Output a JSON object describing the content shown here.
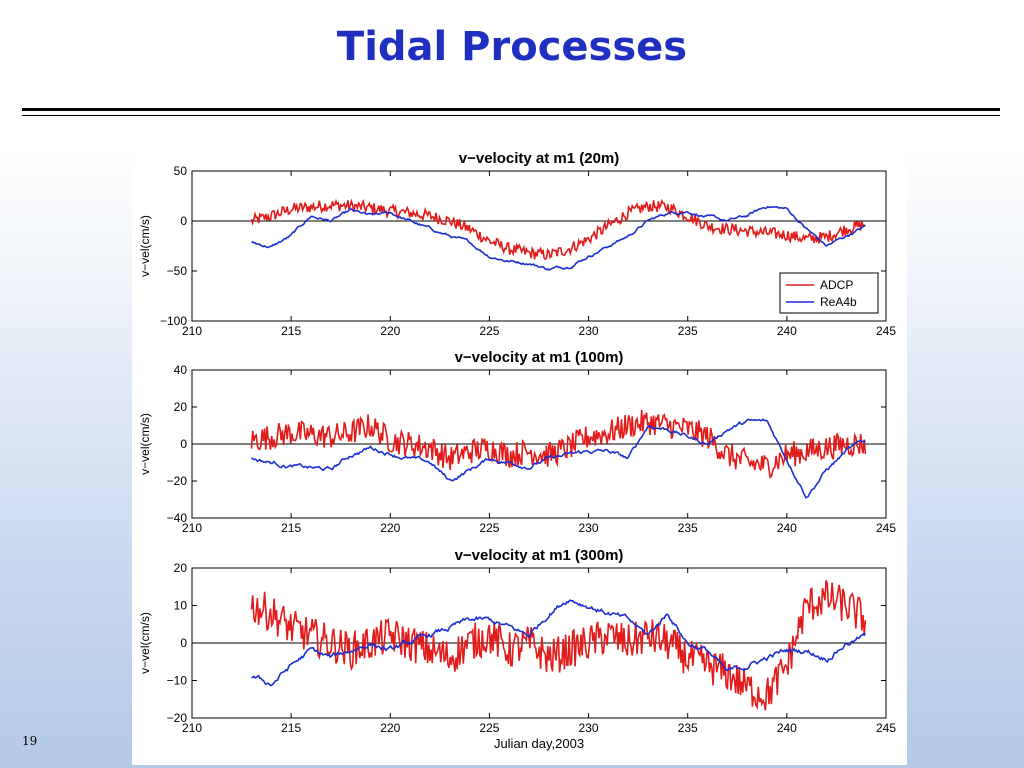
{
  "slide": {
    "title": "Tidal Processes",
    "page_number": "19"
  },
  "colors": {
    "title": "#1f2fbf",
    "adcp": "#e21b1b",
    "rea4b": "#1d2fd0"
  },
  "chart_data": [
    {
      "type": "line",
      "title": "v−velocity at m1 (20m)",
      "xlabel": "",
      "ylabel": "v−vel(cm/s)",
      "xlim": [
        210,
        245
      ],
      "ylim": [
        -100,
        50
      ],
      "xticks": [
        210,
        215,
        220,
        225,
        230,
        235,
        240,
        245
      ],
      "yticks": [
        -100,
        -50,
        0,
        50
      ],
      "ytick_labels": [
        "−100",
        "−50",
        "0",
        "50"
      ],
      "zero_line": true,
      "grid": false,
      "legend": {
        "placement": "lower-right",
        "entries": [
          "ADCP",
          "ReA4b"
        ]
      },
      "series": [
        {
          "name": "ADCP",
          "color": "#e21b1b",
          "noise": 6,
          "x": [
            213,
            214,
            215,
            216,
            217,
            218,
            219,
            220,
            221,
            222,
            223,
            224,
            225,
            226,
            227,
            228,
            229,
            230,
            231,
            232,
            233,
            234,
            235,
            236,
            237,
            238,
            239,
            240,
            241,
            242,
            243,
            244
          ],
          "y": [
            0,
            5,
            12,
            14,
            16,
            15,
            13,
            10,
            8,
            5,
            0,
            -8,
            -20,
            -28,
            -32,
            -34,
            -28,
            -18,
            -5,
            8,
            15,
            14,
            5,
            -5,
            -8,
            -10,
            -12,
            -14,
            -18,
            -16,
            -8,
            -3
          ]
        },
        {
          "name": "ReA4b",
          "color": "#1d2fd0",
          "noise": 2,
          "x": [
            213,
            214,
            215,
            216,
            217,
            218,
            219,
            220,
            221,
            222,
            223,
            224,
            225,
            226,
            227,
            228,
            229,
            230,
            231,
            232,
            233,
            234,
            235,
            236,
            237,
            238,
            239,
            240,
            241,
            242,
            243,
            244
          ],
          "y": [
            -22,
            -26,
            -15,
            5,
            0,
            10,
            5,
            8,
            0,
            -8,
            -15,
            -22,
            -35,
            -40,
            -42,
            -48,
            -45,
            -35,
            -25,
            -15,
            0,
            8,
            10,
            4,
            0,
            5,
            15,
            12,
            -8,
            -25,
            -15,
            -5
          ]
        }
      ]
    },
    {
      "type": "line",
      "title": "v−velocity at m1 (100m)",
      "xlabel": "",
      "ylabel": "v−vel(cm/s)",
      "xlim": [
        210,
        245
      ],
      "ylim": [
        -40,
        40
      ],
      "xticks": [
        210,
        215,
        220,
        225,
        230,
        235,
        240,
        245
      ],
      "yticks": [
        -40,
        -20,
        0,
        20,
        40
      ],
      "ytick_labels": [
        "−40",
        "−20",
        "0",
        "20",
        "40"
      ],
      "zero_line": true,
      "grid": false,
      "series": [
        {
          "name": "ADCP",
          "color": "#e21b1b",
          "noise": 7,
          "x": [
            213,
            214,
            215,
            216,
            217,
            218,
            219,
            220,
            221,
            222,
            223,
            224,
            225,
            226,
            227,
            228,
            229,
            230,
            231,
            232,
            233,
            234,
            235,
            236,
            237,
            238,
            239,
            240,
            241,
            242,
            243,
            244
          ],
          "y": [
            2,
            4,
            6,
            5,
            4,
            6,
            10,
            2,
            0,
            -2,
            -8,
            -4,
            -2,
            -6,
            -4,
            -6,
            -2,
            4,
            6,
            10,
            12,
            10,
            8,
            4,
            -6,
            -10,
            -12,
            -6,
            -4,
            -2,
            0,
            0
          ]
        },
        {
          "name": "ReA4b",
          "color": "#1d2fd0",
          "noise": 1.5,
          "x": [
            213,
            214,
            215,
            216,
            217,
            218,
            219,
            220,
            221,
            222,
            223,
            224,
            225,
            226,
            227,
            228,
            229,
            230,
            231,
            232,
            233,
            234,
            235,
            236,
            237,
            238,
            239,
            240,
            241,
            242,
            243,
            244
          ],
          "y": [
            -8,
            -10,
            -12,
            -13,
            -14,
            -6,
            -2,
            -5,
            -8,
            -10,
            -20,
            -14,
            -8,
            -10,
            -12,
            -8,
            -6,
            -4,
            -4,
            -8,
            10,
            8,
            4,
            0,
            8,
            12,
            12,
            -8,
            -28,
            -14,
            -4,
            2
          ]
        }
      ]
    },
    {
      "type": "line",
      "title": "v−velocity at m1 (300m)",
      "xlabel": "Julian day,2003",
      "ylabel": "v−vel(cm/s)",
      "xlim": [
        210,
        245
      ],
      "ylim": [
        -20,
        20
      ],
      "xticks": [
        210,
        215,
        220,
        225,
        230,
        235,
        240,
        245
      ],
      "yticks": [
        -20,
        -10,
        0,
        10,
        20
      ],
      "ytick_labels": [
        "−20",
        "−10",
        "0",
        "10",
        "20"
      ],
      "zero_line": true,
      "grid": false,
      "series": [
        {
          "name": "ADCP",
          "color": "#e21b1b",
          "noise": 5,
          "x": [
            213,
            214,
            215,
            216,
            217,
            218,
            219,
            220,
            221,
            222,
            223,
            224,
            225,
            226,
            227,
            228,
            229,
            230,
            231,
            232,
            233,
            234,
            235,
            236,
            237,
            238,
            239,
            240,
            241,
            242,
            243,
            244
          ],
          "y": [
            10,
            8,
            4,
            2,
            0,
            -2,
            0,
            2,
            0,
            -2,
            -4,
            0,
            2,
            -2,
            0,
            -4,
            -2,
            0,
            2,
            0,
            2,
            0,
            -4,
            -6,
            -8,
            -12,
            -14,
            -6,
            10,
            12,
            10,
            6
          ]
        },
        {
          "name": "ReA4b",
          "color": "#1d2fd0",
          "noise": 1,
          "x": [
            213,
            214,
            215,
            216,
            217,
            218,
            219,
            220,
            221,
            222,
            223,
            224,
            225,
            226,
            227,
            228,
            229,
            230,
            231,
            232,
            233,
            234,
            235,
            236,
            237,
            238,
            239,
            240,
            241,
            242,
            243,
            244
          ],
          "y": [
            -9,
            -11,
            -6,
            -2,
            -4,
            -2,
            0,
            -2,
            0,
            2,
            4,
            6,
            6,
            4,
            2,
            8,
            12,
            10,
            8,
            6,
            2,
            8,
            0,
            -2,
            -8,
            -6,
            -4,
            -2,
            -2,
            -4,
            0,
            2
          ]
        }
      ]
    }
  ]
}
